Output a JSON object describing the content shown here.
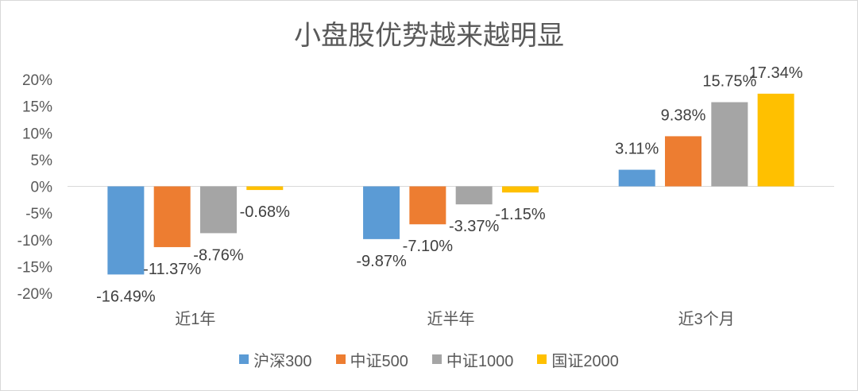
{
  "chart_data": {
    "type": "bar",
    "title": "小盘股优势越来越明显",
    "categories": [
      "近1年",
      "近半年",
      "近3个月"
    ],
    "series": [
      {
        "name": "沪深300",
        "color": "#5B9BD5",
        "values": [
          -16.49,
          -9.87,
          3.11
        ],
        "labels": [
          "-16.49%",
          "-9.87%",
          "3.11%"
        ]
      },
      {
        "name": "中证500",
        "color": "#ED7D31",
        "values": [
          -11.37,
          -7.1,
          9.38
        ],
        "labels": [
          "-11.37%",
          "-7.10%",
          "9.38%"
        ]
      },
      {
        "name": "中证1000",
        "color": "#A5A5A5",
        "values": [
          -8.76,
          -3.37,
          15.75
        ],
        "labels": [
          "-8.76%",
          "-3.37%",
          "15.75%"
        ]
      },
      {
        "name": "国证2000",
        "color": "#FFC000",
        "values": [
          -0.68,
          -1.15,
          17.34
        ],
        "labels": [
          "-0.68%",
          "-1.15%",
          "17.34%"
        ]
      }
    ],
    "ylim": [
      -20,
      20
    ],
    "yticks": [
      20,
      15,
      10,
      5,
      0,
      -5,
      -10,
      -15,
      -20
    ],
    "ytick_labels": [
      "20%",
      "15%",
      "10%",
      "5%",
      "0%",
      "-5%",
      "-10%",
      "-15%",
      "-20%"
    ],
    "grid": false,
    "legend": "bottom"
  }
}
